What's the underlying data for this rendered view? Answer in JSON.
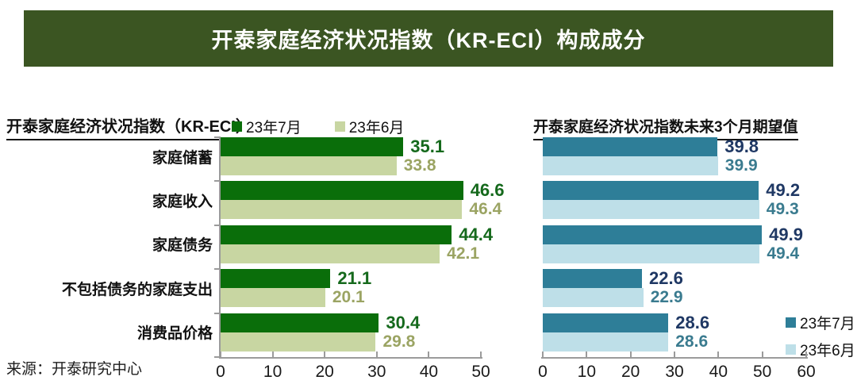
{
  "banner": {
    "title": "开泰家庭经济状况指数（KR-ECI）构成成分",
    "bg_color": "#3b5522",
    "text_color": "#ffffff"
  },
  "source_note": "来源：开泰研究中心",
  "chart_data": [
    {
      "type": "bar",
      "orientation": "horizontal",
      "title": "开泰家庭经济状况指数（KR-ECI）",
      "categories": [
        "家庭储蓄",
        "家庭收入",
        "家庭债务",
        "不包括债务的家庭支出",
        "消费品价格"
      ],
      "series": [
        {
          "name": "23年7月",
          "bar_color": "#0a6e0a",
          "label_color": "#15691c",
          "values": [
            35.1,
            46.6,
            44.4,
            21.1,
            30.4
          ]
        },
        {
          "name": "23年6月",
          "bar_color": "#c8d6a2",
          "label_color": "#9ba463",
          "values": [
            33.8,
            46.4,
            42.1,
            20.1,
            29.8
          ]
        }
      ],
      "xlim": [
        0,
        50
      ],
      "xticks": [
        0,
        10,
        20,
        30,
        40,
        50
      ],
      "legend_position": "top",
      "grid": false,
      "data_labels": true
    },
    {
      "type": "bar",
      "orientation": "horizontal",
      "title": "开泰家庭经济状况指数未来3个月期望值",
      "series": [
        {
          "name": "23年7月",
          "bar_color": "#2e7e98",
          "label_color": "#1f3864",
          "values": [
            39.8,
            49.2,
            49.9,
            22.6,
            28.6
          ]
        },
        {
          "name": "23年6月",
          "bar_color": "#bedfe8",
          "label_color": "#3a7b8f",
          "values": [
            39.9,
            49.3,
            49.4,
            22.9,
            28.6
          ]
        }
      ],
      "xlim": [
        0,
        60
      ],
      "xticks": [
        0,
        10,
        20,
        30,
        40,
        50,
        60
      ],
      "legend_position": "bottom-right",
      "grid": false,
      "data_labels": true
    }
  ]
}
